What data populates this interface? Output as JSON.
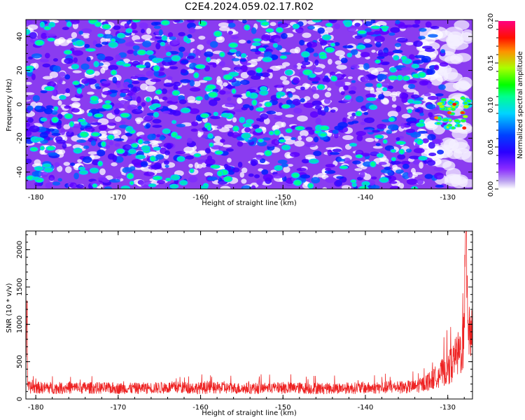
{
  "title": "C2E4.2024.059.02.17.R02",
  "chart_data": [
    {
      "type": "heatmap",
      "xlabel": "Height of straight line (km)",
      "ylabel": "Frequency (Hz)",
      "xlim": [
        -181.2,
        -127.0
      ],
      "ylim": [
        -50,
        50
      ],
      "xticks": [
        -180,
        -170,
        -160,
        -150,
        -140,
        -130
      ],
      "yticks": [
        -40,
        -20,
        0,
        20,
        40
      ],
      "colorbar": {
        "label": "Normalized spectral amplitude",
        "range": [
          0.0,
          0.2
        ],
        "ticks": [
          "0.00",
          "0.05",
          "0.10",
          "0.15",
          "0.20"
        ],
        "colors": [
          "#ffffff",
          "#a070e8",
          "#6a00ff",
          "#0000ff",
          "#00c8ff",
          "#00ff90",
          "#00ff00",
          "#c8ff00",
          "#ff8000",
          "#ff0000",
          "#ff00a0"
        ]
      },
      "notes": "dense speckle field of spectral amplitude; strong hot spots around -130 to -128 km near 0 Hz"
    },
    {
      "type": "line",
      "xlabel": "Height of straight line (km)",
      "ylabel": "SNR (10 * v/v)",
      "xlim": [
        -181.2,
        -127.0
      ],
      "ylim": [
        0,
        2250
      ],
      "xticks": [
        -180,
        -170,
        -160,
        -150,
        -140,
        -130
      ],
      "yticks": [
        0,
        500,
        1000,
        1500,
        2000
      ],
      "color": "#ee2222",
      "series": [
        {
          "x": [
            -181,
            -178,
            -175,
            -172,
            -169,
            -166,
            -163,
            -160,
            -157,
            -154,
            -151,
            -148,
            -145,
            -142,
            -139,
            -136,
            -134,
            -133,
            -132,
            -131,
            -130,
            -129.5,
            -129,
            -128.5,
            -128,
            -127.8,
            -127.5,
            -127.2
          ],
          "y": [
            160,
            150,
            155,
            150,
            145,
            150,
            160,
            150,
            150,
            145,
            150,
            150,
            145,
            150,
            150,
            160,
            170,
            200,
            260,
            330,
            420,
            480,
            560,
            650,
            820,
            2250,
            1100,
            900
          ]
        }
      ]
    }
  ]
}
